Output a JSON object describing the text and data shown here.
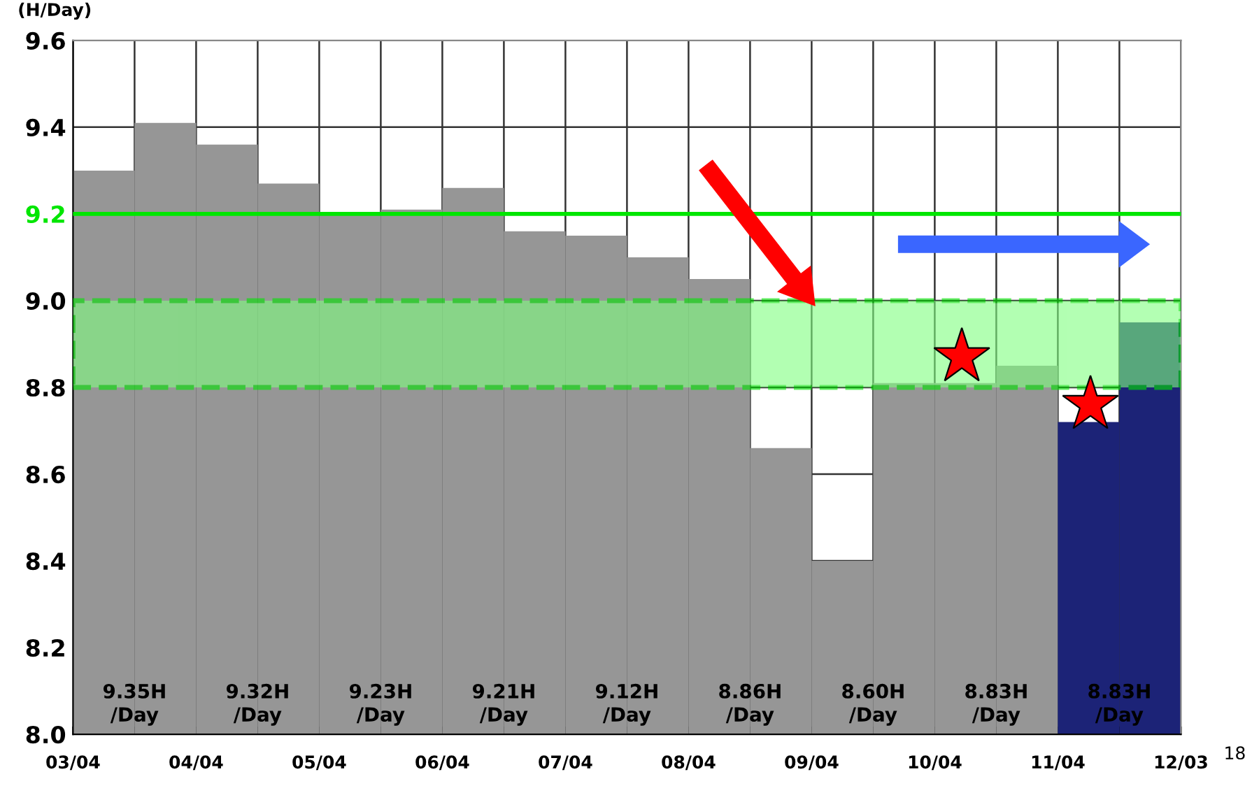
{
  "chart_data": {
    "type": "bar",
    "ylabel": "(H/Day)",
    "categories": [
      null,
      null,
      null,
      null,
      null,
      null,
      null,
      null,
      null,
      null,
      null,
      null,
      null,
      null,
      null,
      null,
      null,
      null
    ],
    "values": [
      9.3,
      9.41,
      9.36,
      9.27,
      9.2,
      9.21,
      9.26,
      9.16,
      9.15,
      9.1,
      9.05,
      8.66,
      8.4,
      8.81,
      8.81,
      8.85,
      8.72,
      8.95
    ],
    "colors": [
      "#969696",
      "#969696",
      "#969696",
      "#969696",
      "#969696",
      "#969696",
      "#969696",
      "#969696",
      "#969696",
      "#969696",
      "#969696",
      "#969696",
      "#969696",
      "#969696",
      "#969696",
      "#969696",
      "#1c2377",
      "#1c2377"
    ],
    "ylim": [
      8.0,
      9.6
    ],
    "yticks": [
      {
        "value": 8.0,
        "label": "8.0"
      },
      {
        "value": 8.2,
        "label": "8.2"
      },
      {
        "value": 8.4,
        "label": "8.4"
      },
      {
        "value": 8.6,
        "label": "8.6"
      },
      {
        "value": 8.8,
        "label": "8.8"
      },
      {
        "value": 9.0,
        "label": "9.0"
      },
      {
        "value": 9.2,
        "label": "9.2"
      },
      {
        "value": 9.4,
        "label": "9.4"
      },
      {
        "value": 9.6,
        "label": "9.6"
      }
    ],
    "grid": true,
    "ref_lines": [
      {
        "axis": "y",
        "value": 9.2,
        "color": "#00e600",
        "line_style": "solid"
      }
    ],
    "bands": [
      {
        "axis": "y",
        "from": 8.8,
        "to": 9.0,
        "color": "#80ff80"
      }
    ],
    "annotations": [
      "9.35H\n/Day",
      "9.32H\n/Day",
      "9.23H\n/Day",
      "9.21H\n/Day",
      "9.12H\n/Day",
      "8.86H\n/Day",
      "8.60H\n/Day",
      "8.83H\n/Day",
      "8.83H\n/Day",
      "03/04",
      "04/04",
      "05/04",
      "06/04",
      "07/04",
      "08/04",
      "09/04",
      "10/04",
      "11/04",
      "12/03",
      "18"
    ]
  }
}
